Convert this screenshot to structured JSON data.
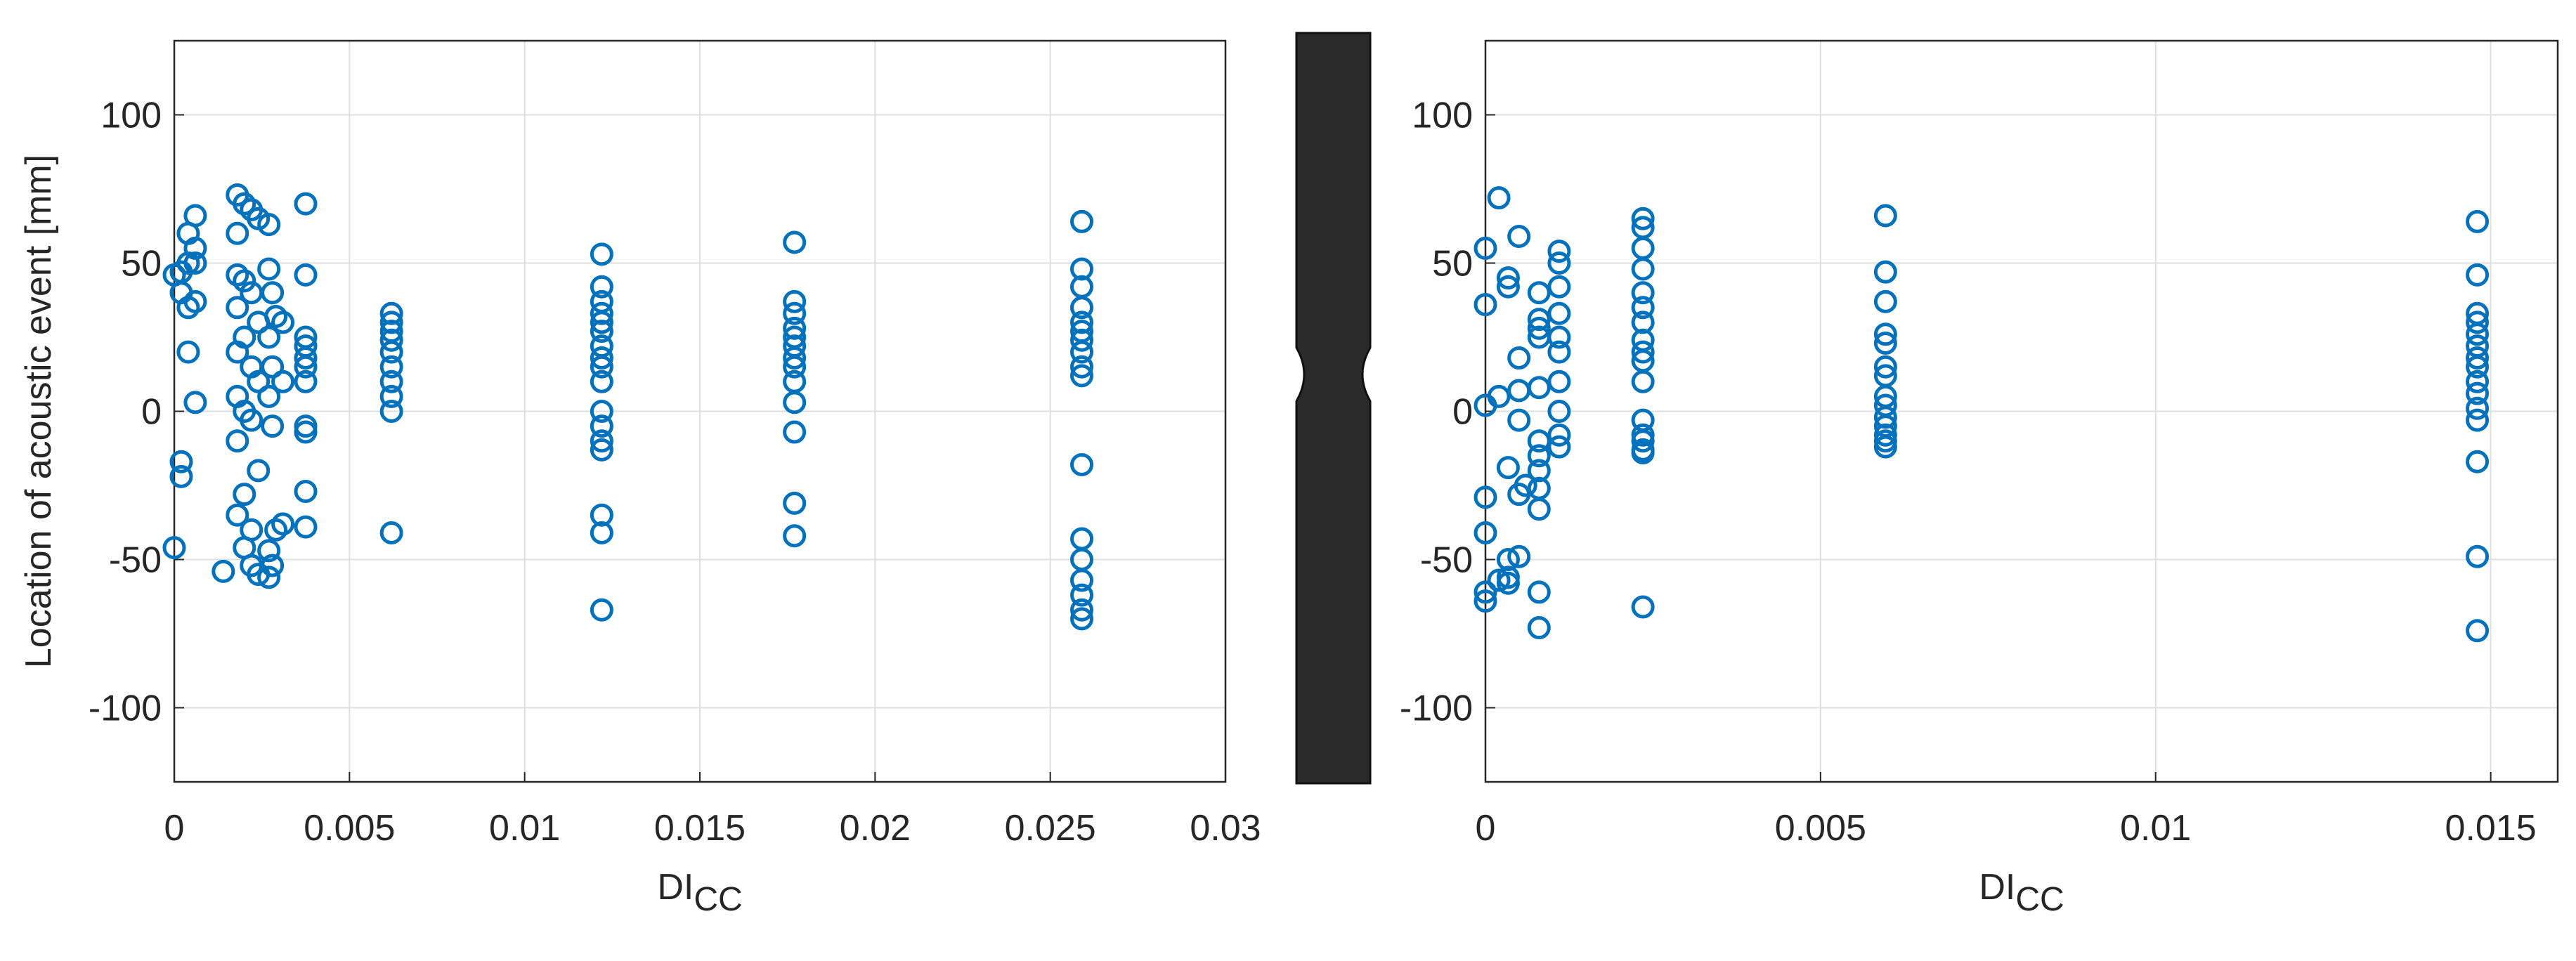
{
  "chart_data": [
    {
      "type": "scatter",
      "ylabel": "Location of acoustic event [mm]",
      "xlabel": "DI",
      "xlabel_sub": "CC",
      "color": "#0072BD",
      "grid": true,
      "xlim": [
        0,
        0.03
      ],
      "ylim": [
        -125,
        125
      ],
      "xticks": [
        0,
        0.005,
        0.01,
        0.015,
        0.02,
        0.025,
        0.03
      ],
      "yticks": [
        -100,
        -50,
        0,
        50,
        100
      ],
      "x": [
        0,
        0,
        0.0002,
        0.0002,
        0.0002,
        0.0002,
        0.0004,
        0.0004,
        0.0004,
        0.0004,
        0.0006,
        0.0006,
        0.0006,
        0.0006,
        0.0006,
        0.0014,
        0.0018,
        0.0018,
        0.0018,
        0.0018,
        0.0018,
        0.0018,
        0.0018,
        0.0018,
        0.002,
        0.002,
        0.002,
        0.002,
        0.002,
        0.002,
        0.0022,
        0.0022,
        0.0022,
        0.0022,
        0.0022,
        0.0022,
        0.0024,
        0.0024,
        0.0024,
        0.0024,
        0.0024,
        0.0027,
        0.0027,
        0.0027,
        0.0027,
        0.0027,
        0.0027,
        0.0028,
        0.0028,
        0.0028,
        0.0028,
        0.0029,
        0.0029,
        0.0031,
        0.0031,
        0.0031,
        0.00375,
        0.00375,
        0.00375,
        0.00375,
        0.00375,
        0.00375,
        0.00375,
        0.00375,
        0.00375,
        0.00375,
        0.00375,
        0.0062,
        0.0062,
        0.0062,
        0.0062,
        0.0062,
        0.0062,
        0.0062,
        0.0062,
        0.0062,
        0.0062,
        0.0122,
        0.0122,
        0.0122,
        0.0122,
        0.0122,
        0.0122,
        0.0122,
        0.0122,
        0.0122,
        0.0122,
        0.0122,
        0.0122,
        0.0122,
        0.0122,
        0.0122,
        0.0122,
        0.0122,
        0.0177,
        0.0177,
        0.0177,
        0.0177,
        0.0177,
        0.0177,
        0.0177,
        0.0177,
        0.0177,
        0.0177,
        0.0177,
        0.0177,
        0.0177,
        0.0259,
        0.0259,
        0.0259,
        0.0259,
        0.0259,
        0.0259,
        0.0259,
        0.0259,
        0.0259,
        0.0259,
        0.0259,
        0.0259,
        0.0259,
        0.0259,
        0.0259,
        0.0259,
        0.0259
      ],
      "y": [
        -46,
        46,
        47,
        40,
        -17,
        -22,
        50,
        60,
        35,
        20,
        66,
        55,
        37,
        3,
        50,
        -54,
        73,
        60,
        46,
        35,
        20,
        5,
        -10,
        -35,
        70,
        44,
        25,
        0,
        -28,
        -46,
        68,
        40,
        15,
        -3,
        -40,
        -52,
        65,
        30,
        10,
        -20,
        -55,
        63,
        48,
        25,
        5,
        -47,
        -56,
        40,
        15,
        -5,
        -52,
        32,
        -40,
        30,
        10,
        -38,
        70,
        46,
        25,
        22,
        18,
        15,
        10,
        -5,
        -7,
        -27,
        -39,
        33,
        30,
        27,
        24,
        20,
        15,
        10,
        5,
        0,
        -41,
        53,
        42,
        37,
        33,
        30,
        27,
        22,
        18,
        15,
        10,
        0,
        -5,
        -10,
        -13,
        -35,
        -41,
        -67,
        57,
        37,
        33,
        28,
        25,
        22,
        18,
        15,
        10,
        3,
        -7,
        -31,
        -42,
        64,
        48,
        42,
        35,
        30,
        27,
        24,
        20,
        15,
        12,
        -18,
        -43,
        -50,
        -57,
        -62,
        -67,
        -70
      ]
    },
    {
      "type": "scatter",
      "xlabel": "DI",
      "xlabel_sub": "CC",
      "color": "#0072BD",
      "grid": true,
      "xlim": [
        0,
        0.016
      ],
      "ylim": [
        -125,
        125
      ],
      "xticks": [
        0,
        0.005,
        0.01,
        0.015
      ],
      "yticks": [
        -100,
        -50,
        0,
        50,
        100
      ],
      "x": [
        0,
        0,
        0,
        0,
        0,
        0,
        0,
        0.0002,
        0.0002,
        0.0002,
        0.00034,
        0.00034,
        0.00034,
        0.00034,
        0.00034,
        0.00034,
        0.0005,
        0.0005,
        0.0005,
        0.0005,
        0.0005,
        0.0005,
        0.0006,
        0.0008,
        0.0008,
        0.0008,
        0.0008,
        0.0008,
        0.0008,
        0.0008,
        0.0008,
        0.0008,
        0.0008,
        0.0008,
        0.0008,
        0.0011,
        0.0011,
        0.0011,
        0.0011,
        0.0011,
        0.0011,
        0.0011,
        0.0011,
        0.0011,
        0.0011,
        0.00235,
        0.00235,
        0.00235,
        0.00235,
        0.00235,
        0.00235,
        0.00235,
        0.00235,
        0.00235,
        0.00235,
        0.00235,
        0.00235,
        0.00235,
        0.00235,
        0.00235,
        0.00235,
        0.00235,
        0.00597,
        0.00597,
        0.00597,
        0.00597,
        0.00597,
        0.00597,
        0.00597,
        0.00597,
        0.00597,
        0.00597,
        0.00597,
        0.00597,
        0.00597,
        0.00597,
        0.0148,
        0.0148,
        0.0148,
        0.0148,
        0.0148,
        0.0148,
        0.0148,
        0.0148,
        0.0148,
        0.0148,
        0.0148,
        0.0148,
        0.0148,
        0.0148,
        0.0148
      ],
      "y": [
        55,
        36,
        2,
        -29,
        -41,
        -61,
        -64,
        72,
        5,
        -57,
        45,
        42,
        -19,
        -50,
        -56,
        -58,
        59,
        18,
        7,
        -3,
        -28,
        -49,
        -25,
        40,
        31,
        28,
        25,
        8,
        -10,
        -15,
        -20,
        -26,
        -33,
        -61,
        -73,
        54,
        50,
        42,
        33,
        25,
        20,
        10,
        0,
        -8,
        -12,
        65,
        62,
        55,
        48,
        40,
        35,
        30,
        24,
        20,
        17,
        10,
        -3,
        -8,
        -10,
        -13,
        -14,
        -66,
        66,
        47,
        37,
        26,
        23,
        15,
        12,
        5,
        2,
        -2,
        -5,
        -8,
        -10,
        -12,
        64,
        46,
        33,
        30,
        26,
        22,
        18,
        15,
        10,
        6,
        1,
        -3,
        -17,
        -49,
        -74
      ]
    }
  ]
}
